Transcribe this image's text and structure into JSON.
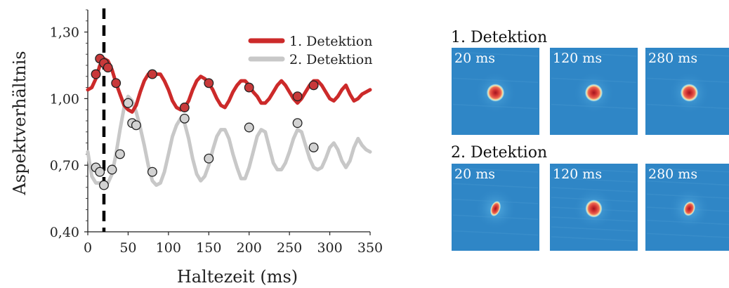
{
  "chart_data": [
    {
      "type": "line",
      "xlabel": "Haltezeit (ms)",
      "ylabel": "Aspektverhältnis",
      "xlim": [
        0,
        350
      ],
      "ylim": [
        0.4,
        1.4
      ],
      "x_ticks": [
        0,
        50,
        100,
        150,
        200,
        250,
        300,
        350
      ],
      "x_tick_labels": [
        "0",
        "50",
        "100",
        "150",
        "200",
        "250",
        "300",
        "350"
      ],
      "y_ticks": [
        0.4,
        0.7,
        1.0,
        1.3
      ],
      "y_tick_labels": [
        "0,40",
        "0,70",
        "1,00",
        "1,30"
      ],
      "grid": false,
      "legend_position": "top-right",
      "vertical_marker": {
        "x": 20,
        "style": "dashed",
        "color": "#000000"
      },
      "series": [
        {
          "name": "1. Detektion",
          "color": "#cc2a2a",
          "line": {
            "x": [
              0,
              5,
              10,
              15,
              20,
              25,
              30,
              35,
              40,
              45,
              50,
              55,
              60,
              65,
              70,
              75,
              80,
              85,
              90,
              95,
              100,
              105,
              110,
              115,
              120,
              125,
              130,
              135,
              140,
              145,
              150,
              155,
              160,
              165,
              170,
              175,
              180,
              185,
              190,
              195,
              200,
              205,
              210,
              215,
              220,
              225,
              230,
              235,
              240,
              245,
              250,
              255,
              260,
              265,
              270,
              275,
              280,
              285,
              290,
              295,
              300,
              305,
              310,
              315,
              320,
              325,
              330,
              335,
              340,
              345,
              350
            ],
            "y": [
              1.04,
              1.05,
              1.09,
              1.15,
              1.18,
              1.17,
              1.13,
              1.07,
              1.02,
              0.97,
              0.95,
              0.94,
              0.97,
              1.03,
              1.08,
              1.11,
              1.12,
              1.11,
              1.11,
              1.08,
              1.04,
              0.99,
              0.96,
              0.95,
              0.96,
              0.99,
              1.04,
              1.08,
              1.1,
              1.09,
              1.07,
              1.04,
              1.0,
              0.97,
              0.96,
              0.99,
              1.03,
              1.06,
              1.08,
              1.08,
              1.06,
              1.03,
              1.01,
              0.98,
              0.98,
              1.0,
              1.03,
              1.06,
              1.08,
              1.06,
              1.03,
              1.0,
              0.98,
              1.0,
              1.03,
              1.06,
              1.08,
              1.08,
              1.06,
              1.03,
              1.0,
              0.99,
              1.01,
              1.04,
              1.06,
              1.02,
              0.99,
              1.0,
              1.02,
              1.03,
              1.04
            ]
          },
          "points": {
            "x": [
              10,
              15,
              20,
              25,
              35,
              50,
              80,
              120,
              150,
              200,
              260,
              280
            ],
            "y": [
              1.11,
              1.18,
              1.16,
              1.14,
              1.07,
              0.98,
              1.11,
              0.96,
              1.07,
              1.05,
              1.01,
              1.06
            ]
          }
        },
        {
          "name": "2. Detektion",
          "color": "#c8c8c8",
          "line": {
            "x": [
              0,
              5,
              10,
              15,
              20,
              25,
              30,
              35,
              40,
              45,
              50,
              55,
              60,
              65,
              70,
              75,
              80,
              85,
              90,
              95,
              100,
              105,
              110,
              115,
              120,
              125,
              130,
              135,
              140,
              145,
              150,
              155,
              160,
              165,
              170,
              175,
              180,
              185,
              190,
              195,
              200,
              205,
              210,
              215,
              220,
              225,
              230,
              235,
              240,
              245,
              250,
              255,
              260,
              265,
              270,
              275,
              280,
              285,
              290,
              295,
              300,
              305,
              310,
              315,
              320,
              325,
              330,
              335,
              340,
              345,
              350
            ],
            "y": [
              0.76,
              0.65,
              0.62,
              0.62,
              0.61,
              0.62,
              0.66,
              0.75,
              0.86,
              0.96,
              1.01,
              0.99,
              0.94,
              0.87,
              0.79,
              0.7,
              0.63,
              0.61,
              0.62,
              0.67,
              0.75,
              0.83,
              0.88,
              0.91,
              0.89,
              0.82,
              0.73,
              0.66,
              0.63,
              0.65,
              0.7,
              0.77,
              0.83,
              0.86,
              0.86,
              0.82,
              0.75,
              0.69,
              0.64,
              0.64,
              0.69,
              0.76,
              0.83,
              0.86,
              0.85,
              0.78,
              0.71,
              0.68,
              0.68,
              0.71,
              0.76,
              0.82,
              0.86,
              0.85,
              0.79,
              0.73,
              0.69,
              0.68,
              0.69,
              0.73,
              0.78,
              0.8,
              0.77,
              0.72,
              0.69,
              0.72,
              0.78,
              0.82,
              0.79,
              0.77,
              0.76
            ]
          },
          "points": {
            "x": [
              10,
              15,
              20,
              30,
              40,
              50,
              55,
              60,
              80,
              120,
              150,
              200,
              260,
              280
            ],
            "y": [
              0.69,
              0.67,
              0.61,
              0.68,
              0.75,
              0.98,
              0.89,
              0.88,
              0.67,
              0.91,
              0.73,
              0.87,
              0.89,
              0.78
            ]
          }
        }
      ]
    }
  ],
  "image_panels": {
    "rows": [
      {
        "label": "1. Detektion",
        "images": [
          {
            "label": "20 ms",
            "blob_aspect": 1.0,
            "blob_size": 1.0,
            "blob_tilt": 0,
            "noise": 0.2
          },
          {
            "label": "120 ms",
            "blob_aspect": 1.0,
            "blob_size": 1.0,
            "blob_tilt": 0,
            "noise": 0.2
          },
          {
            "label": "280 ms",
            "blob_aspect": 1.0,
            "blob_size": 1.0,
            "blob_tilt": 0,
            "noise": 0.2
          }
        ]
      },
      {
        "label": "2. Detektion",
        "images": [
          {
            "label": "20 ms",
            "blob_aspect": 0.6,
            "blob_size": 0.9,
            "blob_tilt": 20,
            "noise": 0.35
          },
          {
            "label": "120 ms",
            "blob_aspect": 0.95,
            "blob_size": 1.0,
            "blob_tilt": 0,
            "noise": 0.6
          },
          {
            "label": "280 ms",
            "blob_aspect": 0.75,
            "blob_size": 0.85,
            "blob_tilt": 20,
            "noise": 0.45
          }
        ]
      }
    ],
    "colors": {
      "background": "#2f86c6",
      "halo": "#59b3e6",
      "outer_ring": "#f4e3a0",
      "inner": "#e24a3c",
      "core": "#b01e26"
    }
  }
}
